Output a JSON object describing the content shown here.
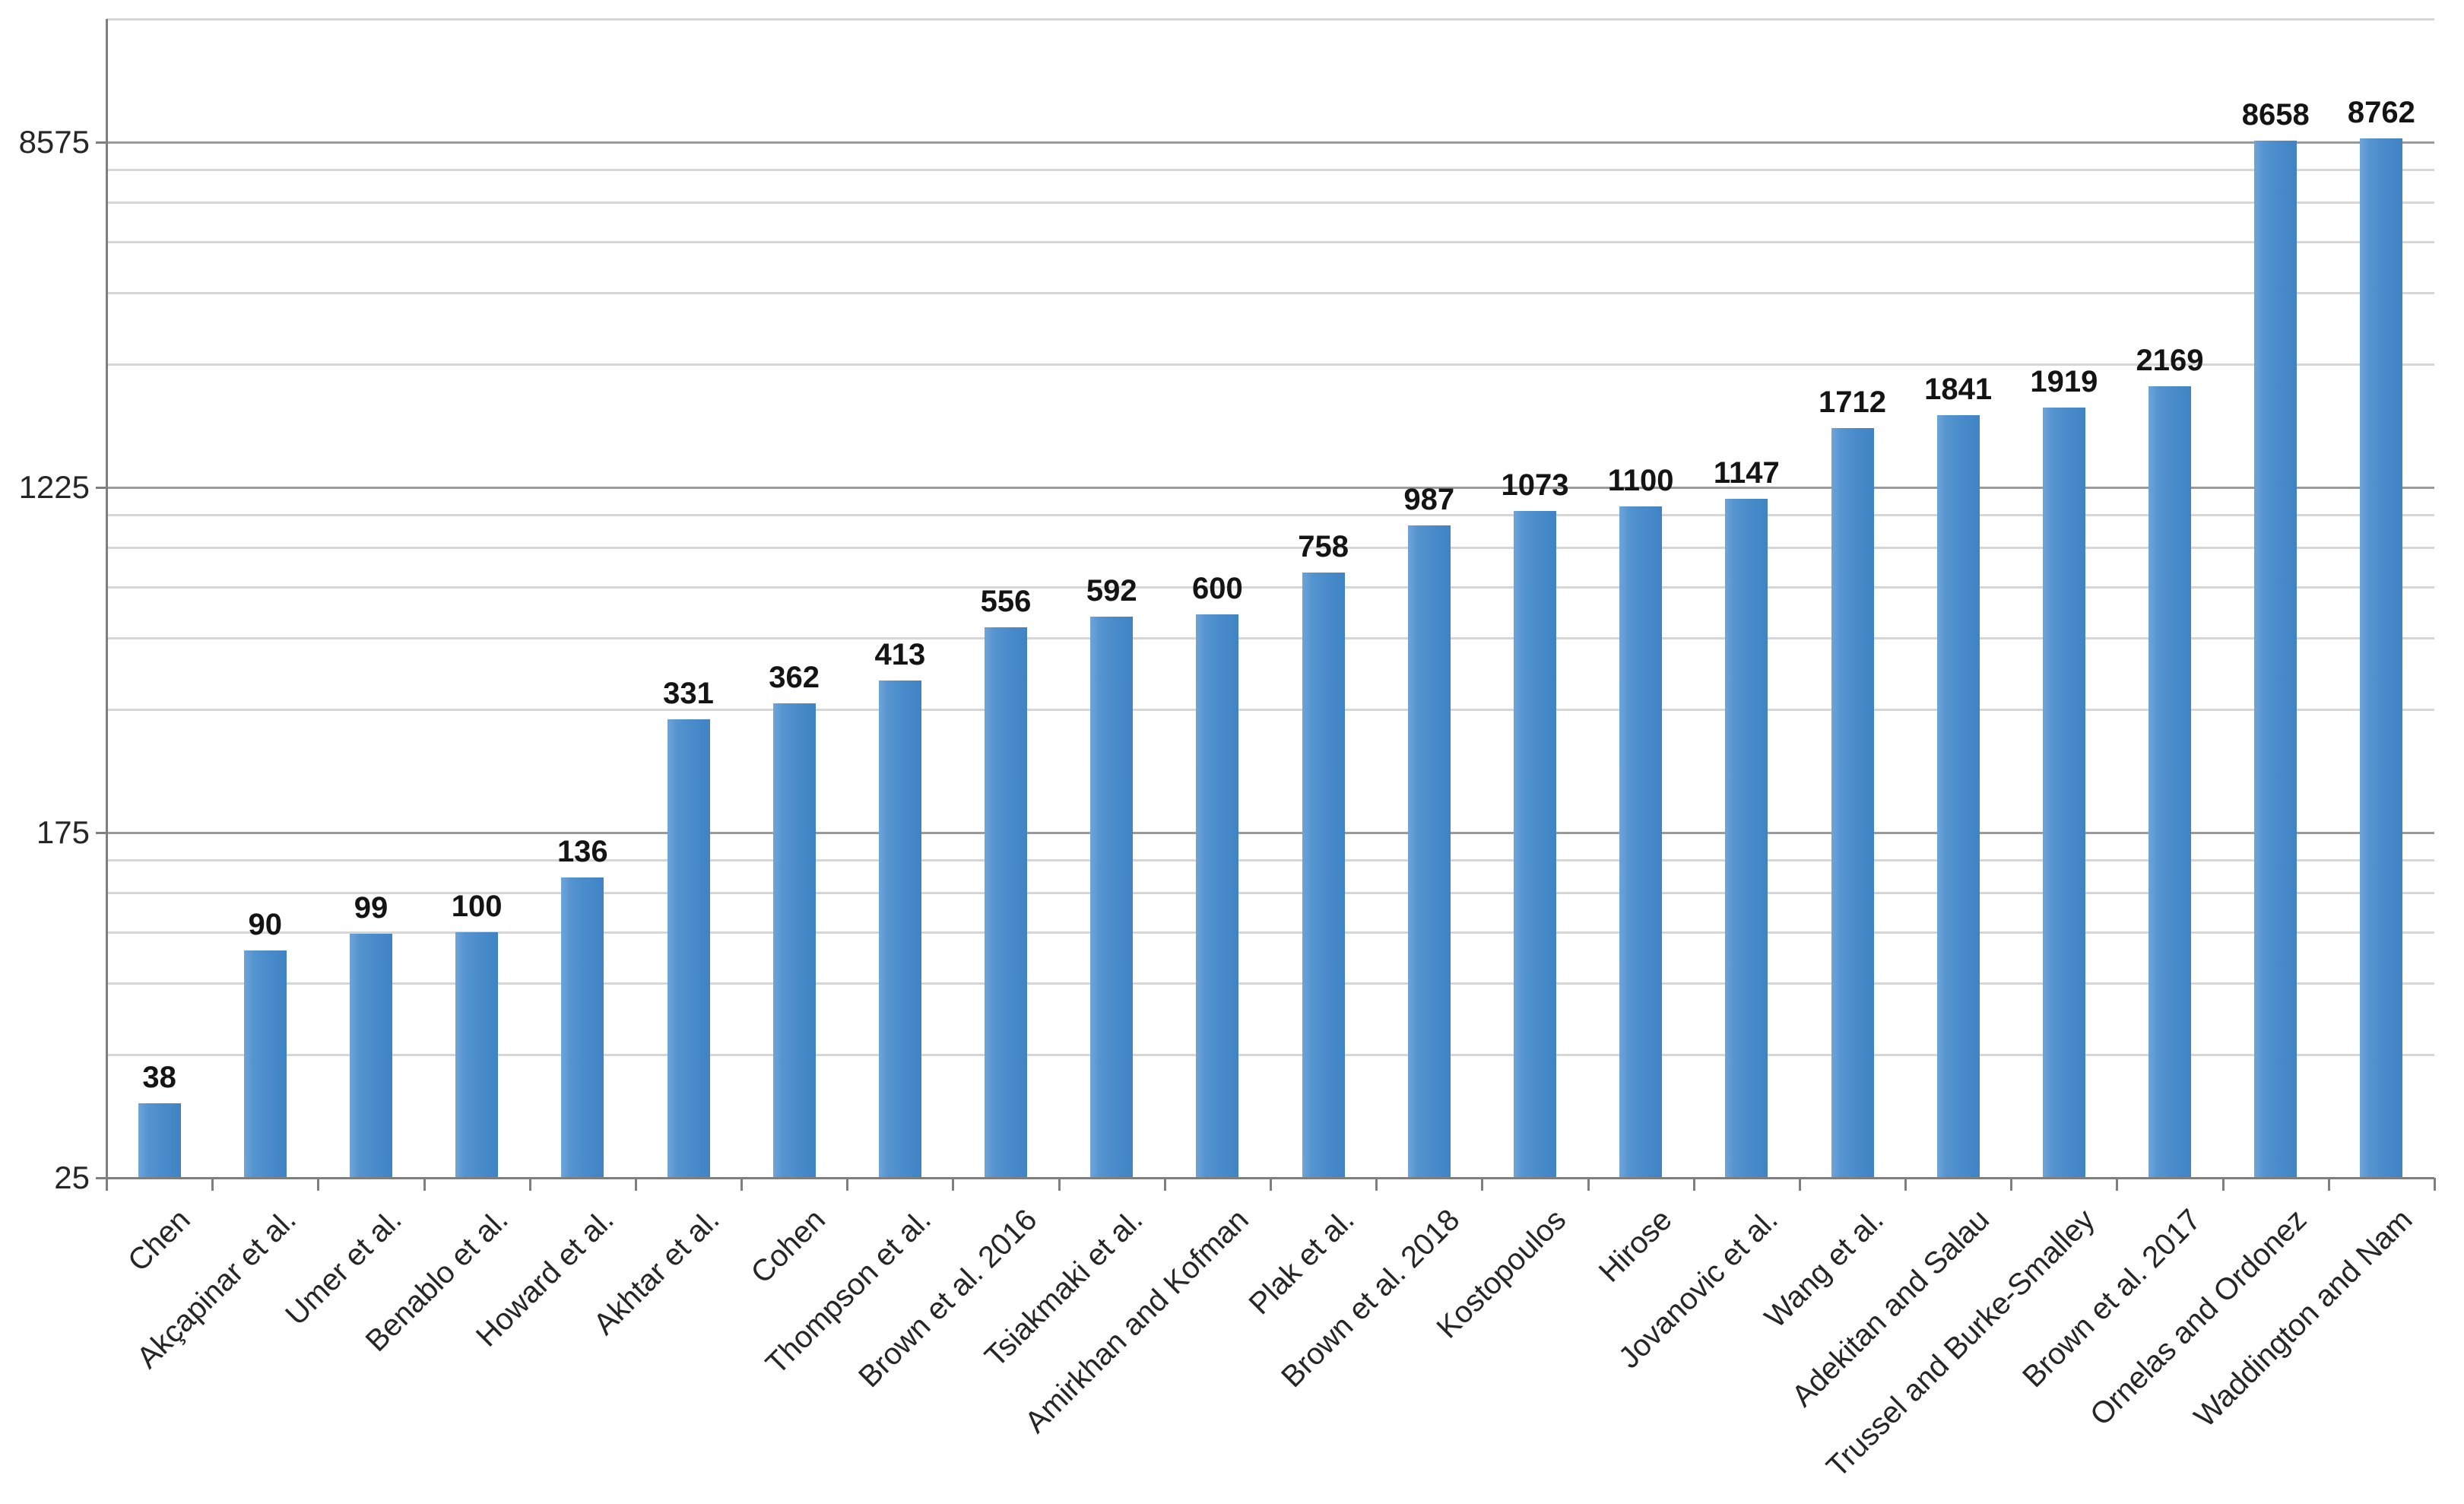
{
  "chart_data": {
    "type": "bar",
    "title": "",
    "xlabel": "",
    "ylabel": "",
    "legend": "none",
    "grid": "horizontal major and minor gridlines",
    "data_labels_shown": true,
    "categories": [
      "Chen",
      "Akçapinar et al.",
      "Umer et al.",
      "Benablo et al.",
      "Howard et al.",
      "Akhtar et al.",
      "Cohen",
      "Thompson et al.",
      "Brown et al. 2016",
      "Tsiakmaki et al.",
      "Amirkhan and Kofman",
      "Plak et al.",
      "Brown et al. 2018",
      "Kostopoulos",
      "Hirose",
      "Jovanovic et al.",
      "Wang et al.",
      "Adekitan and Salau",
      "Trussel and Burke-Smalley",
      "Brown et al. 2017",
      "Ornelas and Ordonez",
      "Waddington and Nam"
    ],
    "values": [
      38,
      90,
      99,
      100,
      136,
      331,
      362,
      413,
      556,
      592,
      600,
      758,
      987,
      1073,
      1100,
      1147,
      1712,
      1841,
      1919,
      2169,
      8658,
      8762
    ],
    "y_axis": {
      "scale": "log",
      "log_base": 7,
      "min": 25,
      "max": 17150,
      "major_ticks": [
        25,
        175,
        1225,
        8575
      ],
      "tick_labels": [
        "25",
        "175",
        "1225",
        "8575"
      ],
      "minor_gridlines": [
        50,
        75,
        100,
        125,
        150,
        350,
        525,
        700,
        875,
        1050,
        2450,
        3675,
        4900,
        6125,
        7350,
        17150
      ]
    },
    "x_axis": {
      "label_rotation_deg": 45,
      "ticks_between_categories": true
    },
    "colors": {
      "bar_main": "#4a8ccb",
      "bar_light_edge": "#6ea4d9",
      "bar_dark_edge": "#4083c3",
      "major_gridline": "#9a9a9a",
      "minor_gridline": "#d6d6d6",
      "axis_line": "#7f7f7f",
      "value_label": "#141414",
      "tick_label": "#262626",
      "background": "#ffffff"
    }
  }
}
